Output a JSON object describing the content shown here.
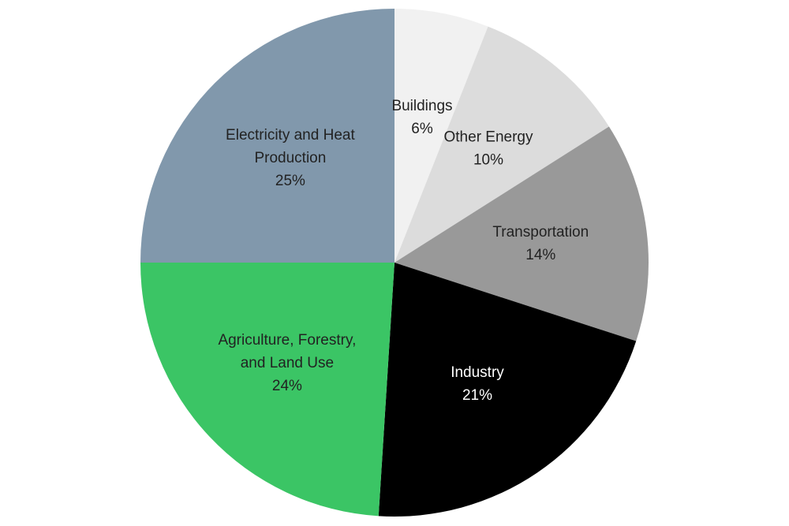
{
  "chart_data": {
    "type": "pie",
    "start_angle_deg": 0,
    "direction": "clockwise",
    "slices": [
      {
        "label": [
          "Buildings"
        ],
        "percent_label": "6%",
        "value": 6,
        "color": "#f1f1f1",
        "text_color": "#222222"
      },
      {
        "label": [
          "Other Energy"
        ],
        "percent_label": "10%",
        "value": 10,
        "color": "#dcdcdc",
        "text_color": "#222222"
      },
      {
        "label": [
          "Transportation"
        ],
        "percent_label": "14%",
        "value": 14,
        "color": "#999999",
        "text_color": "#222222"
      },
      {
        "label": [
          "Industry"
        ],
        "percent_label": "21%",
        "value": 21,
        "color": "#000000",
        "text_color": "#ffffff"
      },
      {
        "label": [
          "Agriculture, Forestry,",
          "and Land Use"
        ],
        "percent_label": "24%",
        "value": 24,
        "color": "#3bc565",
        "text_color": "#222222"
      },
      {
        "label": [
          "Electricity and Heat",
          "Production"
        ],
        "percent_label": "25%",
        "value": 25,
        "color": "#8198ac",
        "text_color": "#222222"
      }
    ]
  }
}
